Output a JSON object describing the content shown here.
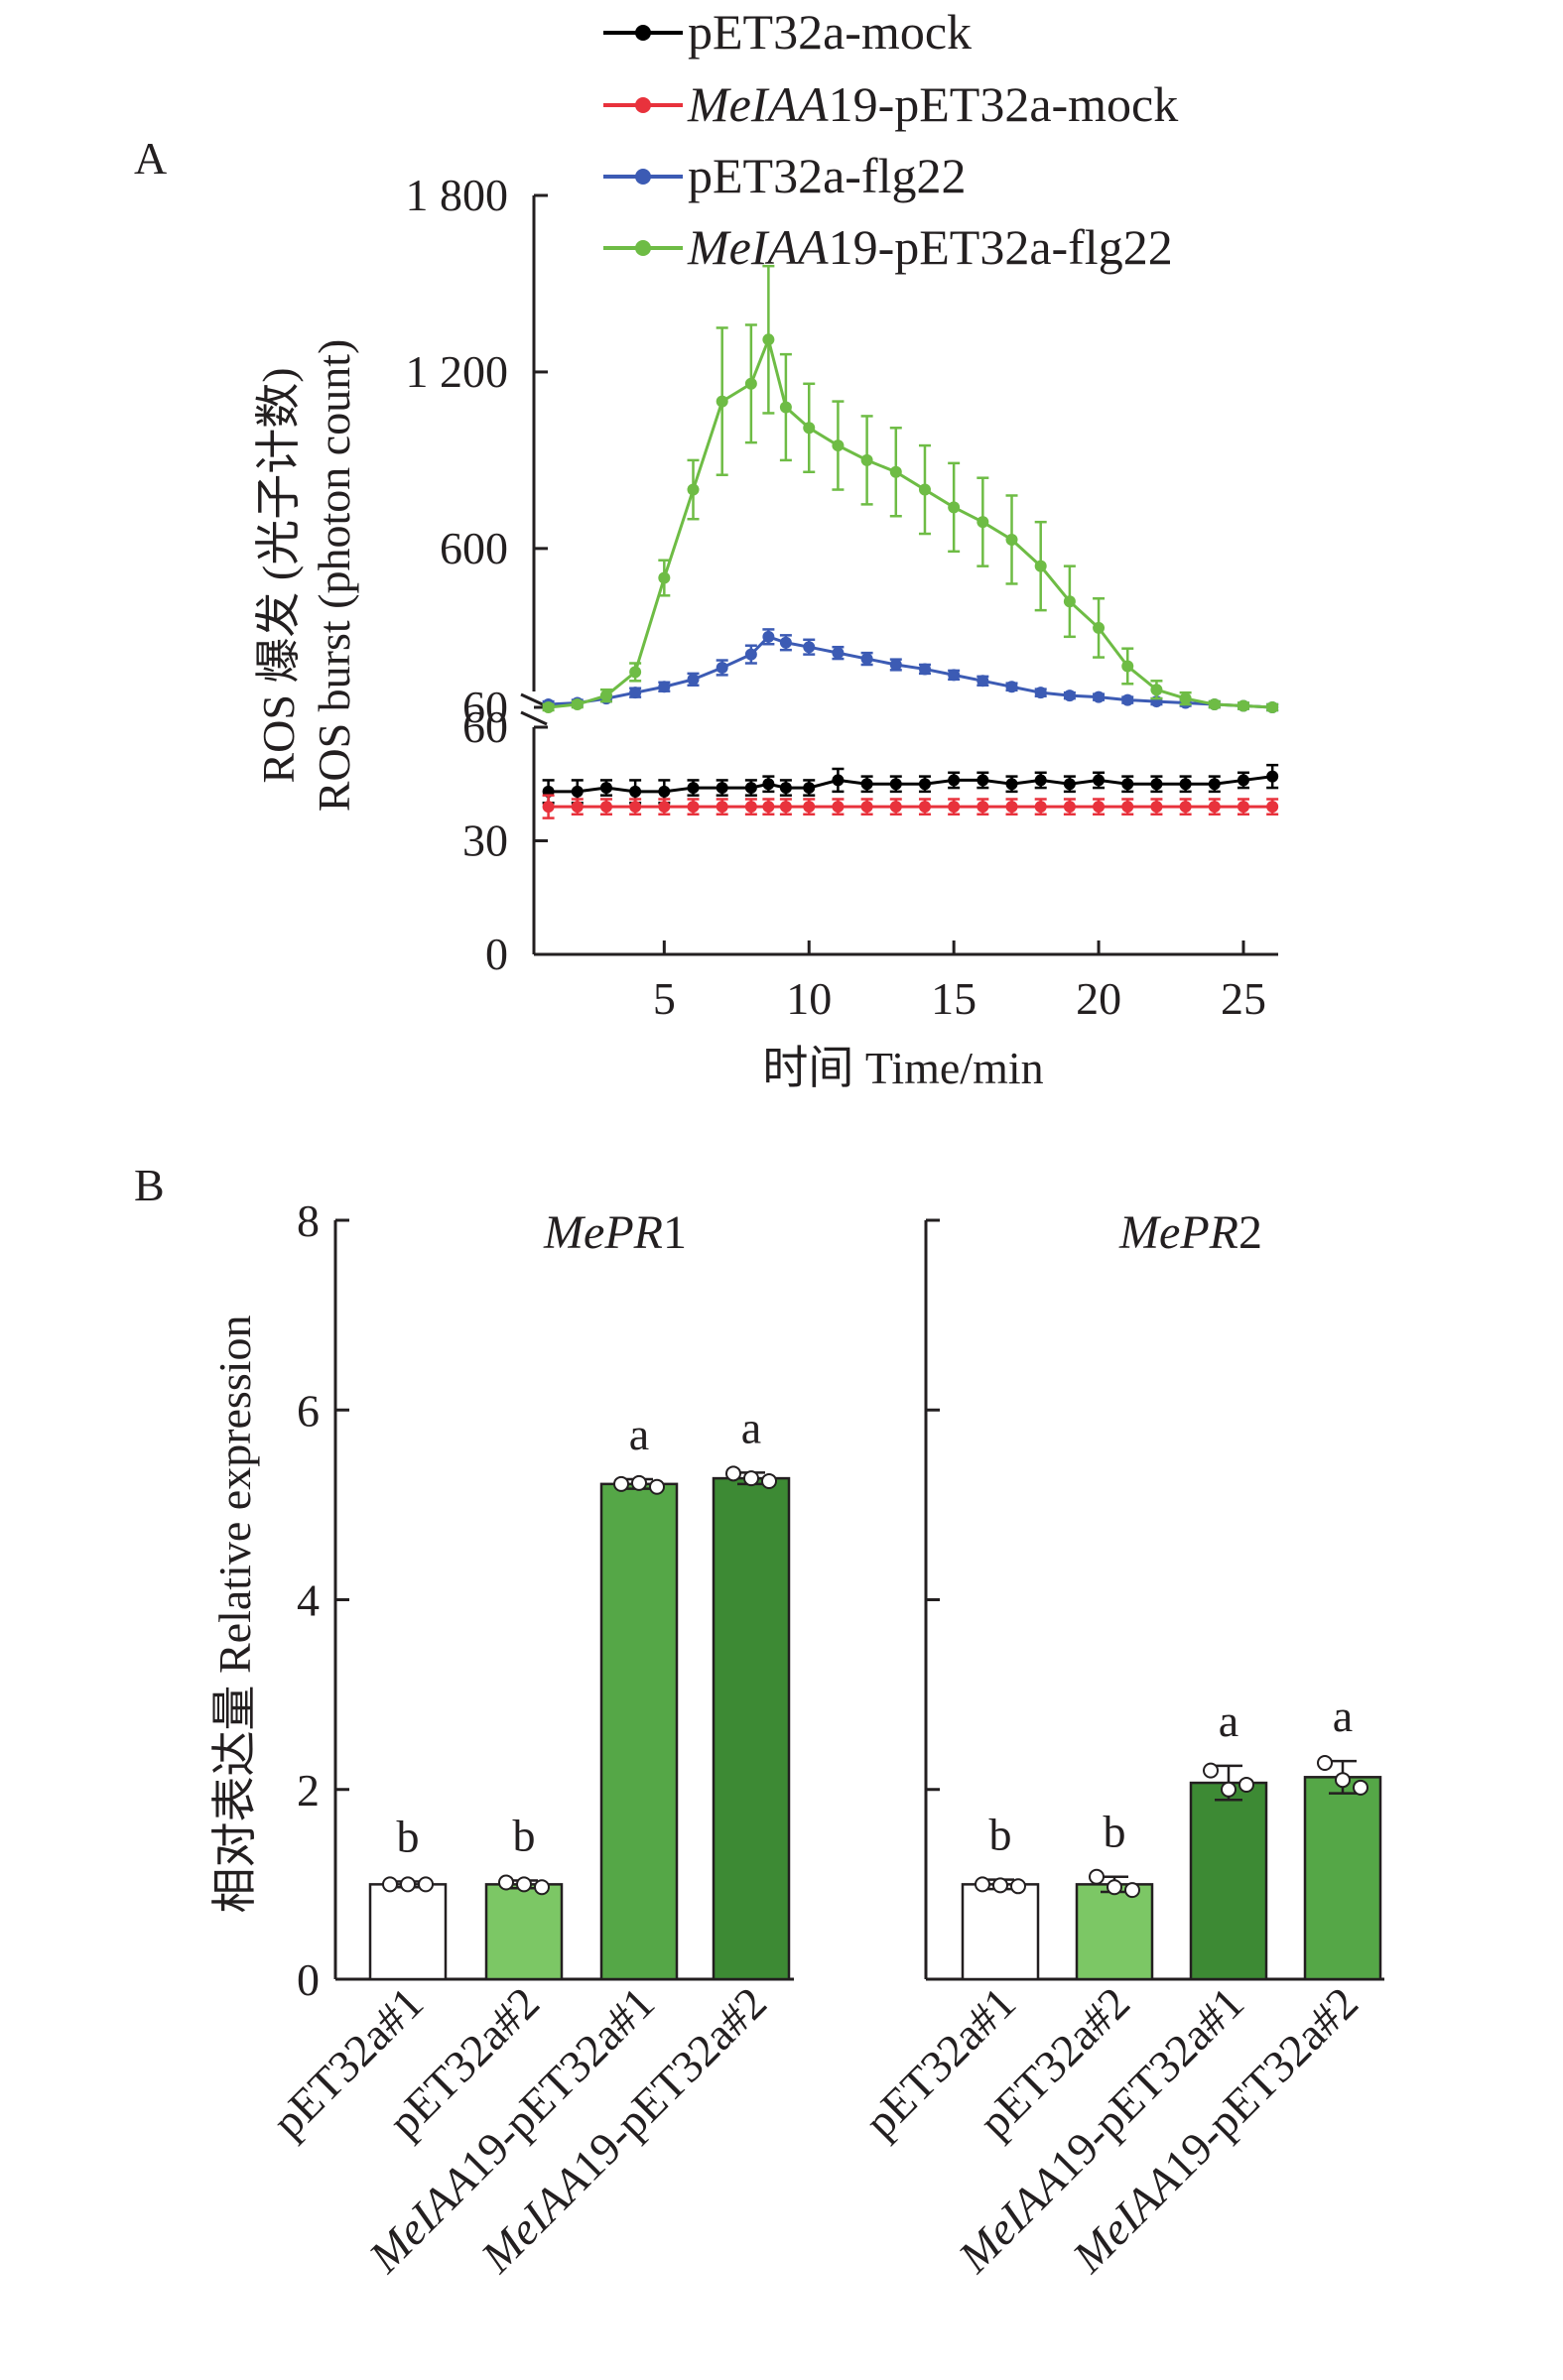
{
  "panel_labels": [
    "A",
    "B"
  ],
  "chart_data": [
    {
      "type": "line",
      "panel": "A",
      "ylabel_cn": "ROS 爆发 (光子计数)",
      "ylabel_en": "ROS burst (photon count)",
      "xlabel": "时间 Time/min",
      "x_ticks": [
        "5",
        "10",
        "15",
        "20",
        "25"
      ],
      "y_ticks_upper": [
        "60",
        "600",
        "1 200",
        "1 800"
      ],
      "y_ticks_lower": [
        "0",
        "30",
        "60"
      ],
      "y_axis_break": true,
      "upper_ylim": [
        60,
        1800
      ],
      "lower_ylim": [
        0,
        60
      ],
      "xlim": [
        0.5,
        26.2
      ],
      "legend_position": "top-right",
      "x": [
        1,
        2,
        3,
        4,
        5,
        6,
        7,
        8,
        8.6,
        9.2,
        10,
        11,
        12,
        13,
        14,
        15,
        16,
        17,
        18,
        19,
        20,
        21,
        22,
        23,
        24,
        25,
        26
      ],
      "series": [
        {
          "name": "pET32a-mock",
          "color": "#000000",
          "segment": "lower",
          "values": [
            43,
            43,
            44,
            43,
            43,
            44,
            44,
            44,
            45,
            44,
            44,
            46,
            45,
            45,
            45,
            46,
            46,
            45,
            46,
            45,
            46,
            45,
            45,
            45,
            45,
            46,
            47
          ],
          "errors": [
            3,
            3,
            2,
            3,
            3,
            2,
            2,
            2,
            2,
            2,
            2,
            3,
            2,
            2,
            2,
            2,
            2,
            2,
            2,
            2,
            2,
            2,
            2,
            2,
            2,
            2,
            3
          ]
        },
        {
          "name": "MeIAA19-pET32a-mock",
          "color": "#e8323c",
          "segment": "lower",
          "values": [
            39,
            39,
            39,
            39,
            39,
            39,
            39,
            39,
            39,
            39,
            39,
            39,
            39,
            39,
            39,
            39,
            39,
            39,
            39,
            39,
            39,
            39,
            39,
            39,
            39,
            39,
            39
          ],
          "errors": [
            3,
            2,
            2,
            2,
            2,
            2,
            2,
            2,
            2,
            2,
            2,
            2,
            2,
            2,
            2,
            2,
            2,
            2,
            2,
            2,
            2,
            2,
            2,
            2,
            2,
            2,
            2
          ]
        },
        {
          "name": "pET32a-flg22",
          "color": "#3c5bb4",
          "segment": "upper",
          "values": [
            70,
            75,
            90,
            110,
            130,
            155,
            195,
            240,
            300,
            280,
            265,
            245,
            225,
            205,
            190,
            170,
            150,
            130,
            110,
            100,
            95,
            85,
            80,
            75,
            70,
            65,
            60
          ],
          "errors": [
            10,
            10,
            10,
            15,
            15,
            20,
            25,
            30,
            25,
            25,
            25,
            20,
            20,
            18,
            15,
            15,
            15,
            12,
            12,
            10,
            10,
            10,
            10,
            10,
            10,
            10,
            10
          ]
        },
        {
          "name": "MeIAA19-pET32a-flg22",
          "color": "#6ebc45",
          "segment": "upper",
          "values": [
            60,
            70,
            100,
            180,
            500,
            800,
            1100,
            1160,
            1310,
            1080,
            1010,
            950,
            900,
            860,
            800,
            740,
            690,
            630,
            540,
            420,
            330,
            200,
            120,
            90,
            70,
            65,
            60
          ],
          "errors": [
            10,
            10,
            20,
            30,
            60,
            100,
            250,
            200,
            250,
            180,
            150,
            150,
            150,
            150,
            150,
            150,
            150,
            150,
            150,
            120,
            100,
            60,
            30,
            20,
            10,
            10,
            10
          ]
        }
      ]
    },
    {
      "type": "bar",
      "panel": "B",
      "ylabel": "相对表达量 Relative expression",
      "ylim": [
        0,
        8
      ],
      "y_ticks": [
        "0",
        "2",
        "4",
        "6",
        "8"
      ],
      "categories": [
        "pET32a#1",
        "pET32a#2",
        "MeIAA19-pET32a#1",
        "MeIAA19-pET32a#2"
      ],
      "italic_prefix": "MeIAA",
      "subplots": [
        {
          "title_italic": "MePR",
          "title_num": "1",
          "values": [
            1.0,
            1.0,
            5.22,
            5.28
          ],
          "errors": [
            0.03,
            0.04,
            0.05,
            0.06
          ],
          "letters": [
            "b",
            "b",
            "a",
            "a"
          ],
          "points": [
            [
              1.0,
              1.0,
              1.0
            ],
            [
              1.02,
              1.0,
              0.97
            ],
            [
              5.22,
              5.23,
              5.19
            ],
            [
              5.33,
              5.28,
              5.25
            ]
          ],
          "colors": [
            "#ffffff",
            "#7cc765",
            "#55a747",
            "#3d8a34"
          ]
        },
        {
          "title_italic": "MePR",
          "title_num": "2",
          "values": [
            1.0,
            1.0,
            2.07,
            2.13
          ],
          "errors": [
            0.05,
            0.08,
            0.18,
            0.17
          ],
          "letters": [
            "b",
            "b",
            "a",
            "a"
          ],
          "points": [
            [
              1.0,
              0.99,
              0.98
            ],
            [
              1.08,
              0.97,
              0.94
            ],
            [
              2.2,
              2.0,
              2.05
            ],
            [
              2.28,
              2.1,
              2.02
            ]
          ],
          "colors": [
            "#ffffff",
            "#7cc765",
            "#3d8a34",
            "#55a747"
          ]
        }
      ]
    }
  ]
}
